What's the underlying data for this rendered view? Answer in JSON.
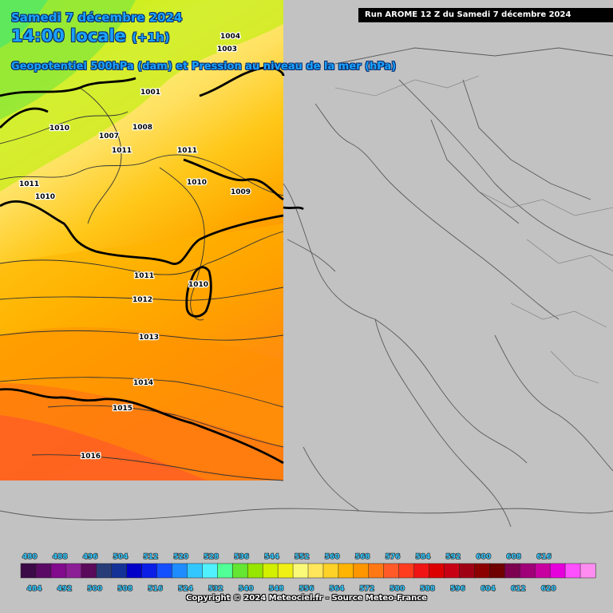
{
  "header": {
    "date": "Samedi 7 décembre 2024",
    "time_main": "14:00 locale",
    "time_offset": "(+1h)",
    "parameter": "Geopotentiel 500hPa (dam) et Pression au niveau de la mer (hPa)"
  },
  "run_banner": "Run AROME 12 Z du Samedi 7 décembre 2024",
  "copyright": "Copyright © 2024 Meteociel.fr - Source Meteo-France",
  "colors": {
    "background": "#c2c2c2",
    "land_lines": "#5a5a5a",
    "title_text": "#1aa3ff"
  },
  "isobars": [
    {
      "value": "1004"
    },
    {
      "value": "1003"
    },
    {
      "value": "1001"
    },
    {
      "value": "1010"
    },
    {
      "value": "1008"
    },
    {
      "value": "1007"
    },
    {
      "value": "1011"
    },
    {
      "value": "1010"
    },
    {
      "value": "1009"
    },
    {
      "value": "1011"
    },
    {
      "value": "1010"
    },
    {
      "value": "1011"
    },
    {
      "value": "1010"
    },
    {
      "value": "1011"
    },
    {
      "value": "1012"
    },
    {
      "value": "1013"
    },
    {
      "value": "1014"
    },
    {
      "value": "1015"
    },
    {
      "value": "1016"
    }
  ],
  "color_scale": {
    "top_labels": [
      "480",
      "488",
      "496",
      "504",
      "512",
      "520",
      "528",
      "536",
      "544",
      "552",
      "560",
      "568",
      "576",
      "584",
      "592",
      "600",
      "608",
      "616"
    ],
    "bottom_labels": [
      "484",
      "492",
      "500",
      "508",
      "516",
      "524",
      "532",
      "540",
      "548",
      "556",
      "564",
      "572",
      "580",
      "588",
      "596",
      "604",
      "612",
      "620"
    ],
    "colors": [
      "#3c0a46",
      "#5a0a64",
      "#820a8c",
      "#8c1e96",
      "#5a0a5a",
      "#283c78",
      "#143296",
      "#0000c8",
      "#0a1ee6",
      "#1450ff",
      "#1e8cff",
      "#32c8ff",
      "#50f0ff",
      "#50ff96",
      "#64e632",
      "#96e600",
      "#d2f000",
      "#f0f014",
      "#fafa78",
      "#ffe65a",
      "#ffd228",
      "#ffb400",
      "#ff9600",
      "#ff7814",
      "#ff5a28",
      "#ff3c1e",
      "#f01414",
      "#dc0000",
      "#c80014",
      "#a00014",
      "#8c0000",
      "#6e0000",
      "#7d0050",
      "#a00078",
      "#c800a0",
      "#e600dc",
      "#ff50ff",
      "#ff8cf0"
    ]
  }
}
